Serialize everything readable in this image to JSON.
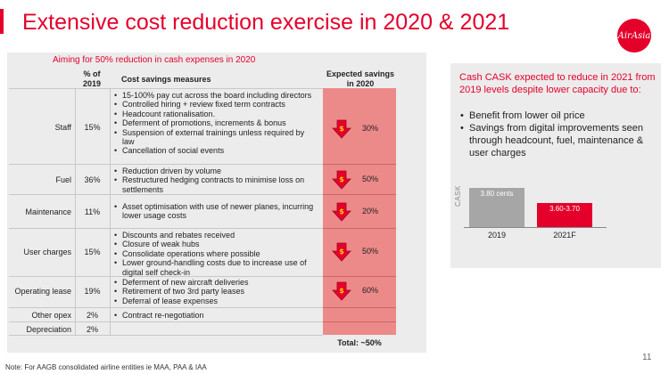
{
  "title": "Extensive cost reduction exercise in 2020 & 2021",
  "logo_text": "AirAsia",
  "left": {
    "subtitle": "Aiming for 50% reduction in cash expenses in 2020",
    "headers": {
      "pct": "% of 2019",
      "measures": "Cost savings measures",
      "savings": "Expected savings in 2020"
    },
    "rows": [
      {
        "label": "Staff",
        "pct": "15%",
        "savings": "30%",
        "measures": [
          "15-100% pay cut across the board including directors",
          "Controlled hiring + review fixed term contracts",
          "Headcount rationalisation.",
          "Deferment of promotions, increments & bonus",
          "Suspension of external trainings unless required by law",
          "Cancellation of social events"
        ]
      },
      {
        "label": "Fuel",
        "pct": "36%",
        "savings": "50%",
        "measures": [
          "Reduction driven by volume",
          "Restructured hedging contracts to minimise loss on settlements"
        ]
      },
      {
        "label": "Maintenance",
        "pct": "11%",
        "savings": "20%",
        "measures": [
          "Asset optimisation with use of newer planes, incurring lower usage costs"
        ]
      },
      {
        "label": "User charges",
        "pct": "15%",
        "savings": "50%",
        "measures": [
          "Discounts and rebates received",
          "Closure of weak hubs",
          "Consolidate operations where possible",
          "Lower ground-handling costs due to increase use of digital self check-in"
        ]
      },
      {
        "label": "Operating lease",
        "pct": "19%",
        "savings": "60%",
        "measures": [
          "Deferment of new aircraft deliveries",
          "Retirement of two 3rd party leases",
          "Deferral of lease expenses"
        ]
      },
      {
        "label": "Other opex",
        "pct": "2%",
        "savings": "",
        "measures": [
          "Contract re-negotiation"
        ]
      },
      {
        "label": "Depreciation",
        "pct": "2%",
        "savings": "",
        "measures": []
      }
    ],
    "total": "Total: ~50%"
  },
  "right": {
    "heading": "Cash CASK expected to reduce in 2021 from 2019 levels despite lower capacity due to:",
    "bullets": [
      "Benefit from lower oil price",
      "Savings from digital improvements seen through headcount, fuel, maintenance & user charges"
    ],
    "axis_label": "CASK"
  },
  "chart_data": {
    "type": "bar",
    "categories": [
      "2019",
      "2021F"
    ],
    "values": [
      3.8,
      3.65
    ],
    "value_labels": [
      "3.80 cents",
      "3.60-3.70"
    ],
    "ylabel": "CASK",
    "colors": [
      "#a6a6a6",
      "#e4002b"
    ]
  },
  "colors": {
    "accent": "#e4002b",
    "savings_fill": "#ec8a8a",
    "panel": "#ececec"
  },
  "note": "Note: For AAGB consolidated airline entities ie MAA, PAA & IAA",
  "page_number": "11"
}
